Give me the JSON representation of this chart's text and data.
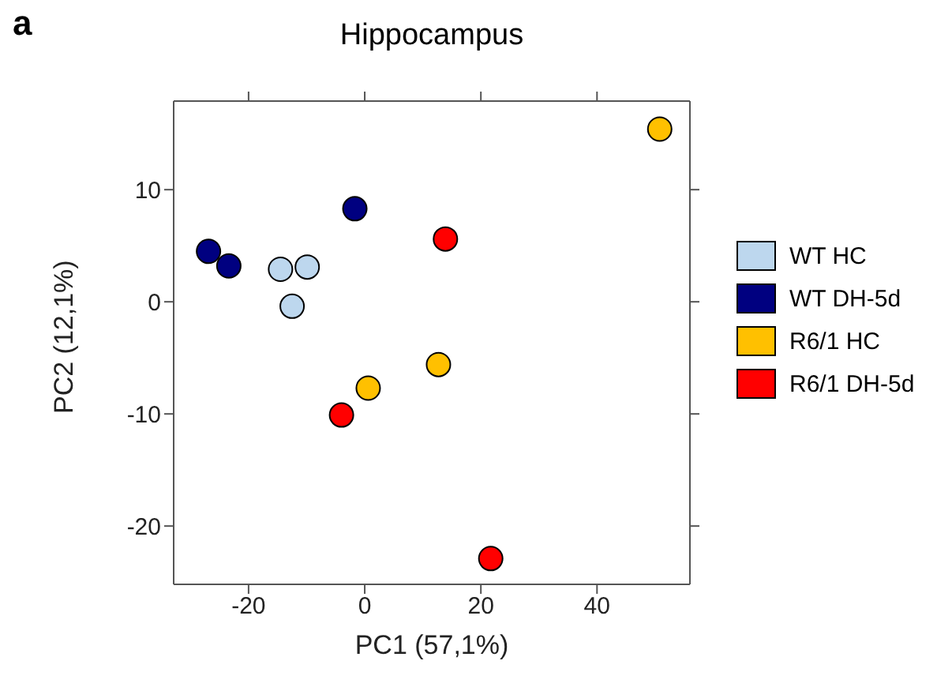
{
  "chart_data": {
    "type": "scatter",
    "title": "Hippocampus",
    "xlabel": "PC1 (57,1%)",
    "ylabel": "PC2 (12,1%)",
    "annotations": [
      "a"
    ],
    "xlim": [
      -32.9,
      56
    ],
    "xticks": [
      -20,
      0,
      20,
      40
    ],
    "ylim": [
      -25.2,
      17.9
    ],
    "yticks": [
      -20,
      -10,
      0,
      10
    ],
    "legend": "right",
    "marker": "circle",
    "series": [
      {
        "name": "WT HC",
        "color": "#bdd7ee",
        "x": [
          -14.5,
          -9.9,
          -12.5
        ],
        "values": [
          2.9,
          3.1,
          -0.4
        ]
      },
      {
        "name": "WT DH-5d",
        "color": "#000080",
        "x": [
          -26.9,
          -23.4,
          -1.7
        ],
        "values": [
          4.5,
          3.2,
          8.3
        ]
      },
      {
        "name": "R6/1 HC",
        "color": "#ffc000",
        "x": [
          50.8,
          0.6,
          12.7
        ],
        "values": [
          15.4,
          -7.7,
          -5.6
        ]
      },
      {
        "name": "R6/1 DH-5d",
        "color": "#ff0000",
        "x": [
          13.9,
          -4.0,
          21.7
        ],
        "values": [
          5.6,
          -10.1,
          -22.9
        ]
      }
    ]
  }
}
